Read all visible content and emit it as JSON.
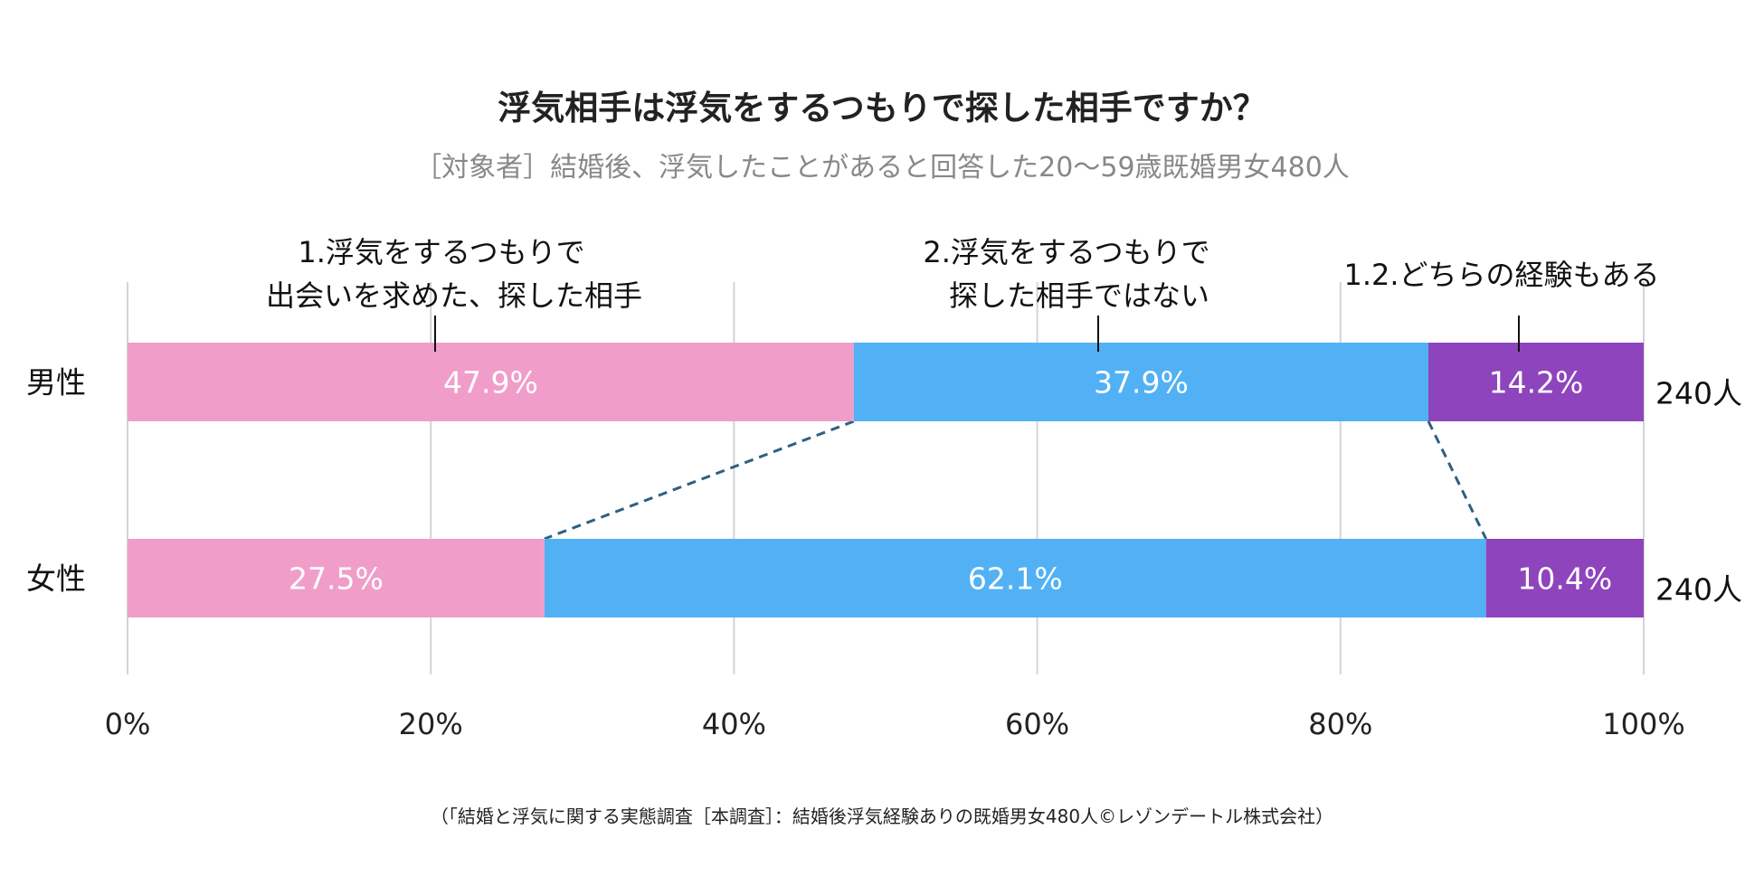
{
  "chart_data": {
    "type": "bar",
    "orientation": "horizontal-stacked-100",
    "title": "浮気相手は浮気をするつもりで探した相手ですか？",
    "subtitle": "［対象者］結婚後、浮気したことがあると回答した20〜59歳既婚男女480人",
    "categories": [
      "男性",
      "女性"
    ],
    "counts": [
      "240人",
      "240人"
    ],
    "series": [
      {
        "name": "1.浮気をするつもりで\n出会いを求めた、探した相手",
        "name_lines": [
          "1.浮気をするつもりで",
          "出会いを求めた、探した相手"
        ],
        "color": "#f09ec9",
        "values": [
          47.9,
          27.5
        ],
        "labels": [
          "47.9%",
          "27.5%"
        ]
      },
      {
        "name": "2.浮気をするつもりで\n探した相手ではない",
        "name_lines": [
          "2.浮気をするつもりで",
          "探した相手ではない"
        ],
        "color": "#52b1f5",
        "values": [
          37.9,
          62.1
        ],
        "labels": [
          "37.9%",
          "62.1%"
        ]
      },
      {
        "name": "1.2.どちらの経験もある",
        "name_lines": [
          "1.2.どちらの経験もある"
        ],
        "color": "#8e44bd",
        "values": [
          14.2,
          10.4
        ],
        "labels": [
          "14.2%",
          "10.4%"
        ]
      }
    ],
    "xlim": [
      0,
      100
    ],
    "xticks": [
      "0%",
      "20%",
      "40%",
      "60%",
      "80%",
      "100%"
    ],
    "grid": true,
    "legend": "top (callouts above bars)",
    "connector_color": "#2f5f80"
  },
  "footer": "（「結婚と浮気に関する実態調査［本調査］：結婚後浮気経験ありの既婚男女480人©レゾンデートル株式会社）"
}
